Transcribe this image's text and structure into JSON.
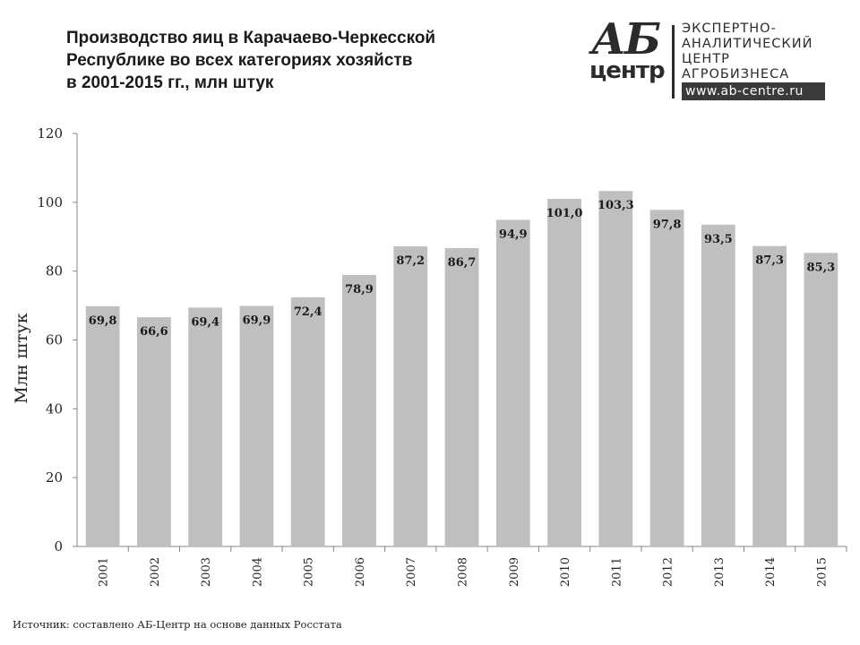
{
  "header": {
    "title_lines": [
      "Производство яиц в Карачаево-Черкесской",
      "Республике во всех категориях хозяйств",
      "в 2001-2015 гг., млн штук"
    ]
  },
  "logo": {
    "mark_top": "АБ",
    "mark_bottom": "центр",
    "lines": [
      "ЭКСПЕРТНО-",
      "АНАЛИТИЧЕСКИЙ",
      "ЦЕНТР",
      "АГРОБИЗНЕСА"
    ],
    "url": "www.ab-centre.ru"
  },
  "footer": {
    "source": "Источник:  составлено АБ-Центр  на основе данных  Росстата"
  },
  "chart_data": {
    "type": "bar",
    "categories": [
      "2001",
      "2002",
      "2003",
      "2004",
      "2005",
      "2006",
      "2007",
      "2008",
      "2009",
      "2010",
      "2011",
      "2012",
      "2013",
      "2014",
      "2015"
    ],
    "values": [
      69.8,
      66.6,
      69.4,
      69.9,
      72.4,
      78.9,
      87.2,
      86.7,
      94.9,
      101.0,
      103.3,
      97.8,
      93.5,
      87.3,
      85.3
    ],
    "value_labels": [
      "69,8",
      "66,6",
      "69,4",
      "69,9",
      "72,4",
      "78,9",
      "87,2",
      "86,7",
      "94,9",
      "101,0",
      "103,3",
      "97,8",
      "93,5",
      "87,3",
      "85,3"
    ],
    "ylabel": "Млн штук",
    "ylim": [
      0,
      120
    ],
    "yticks": [
      0,
      20,
      40,
      60,
      80,
      100,
      120
    ],
    "bar_color": "#bfbfbf",
    "grid": false,
    "legend": "none"
  }
}
